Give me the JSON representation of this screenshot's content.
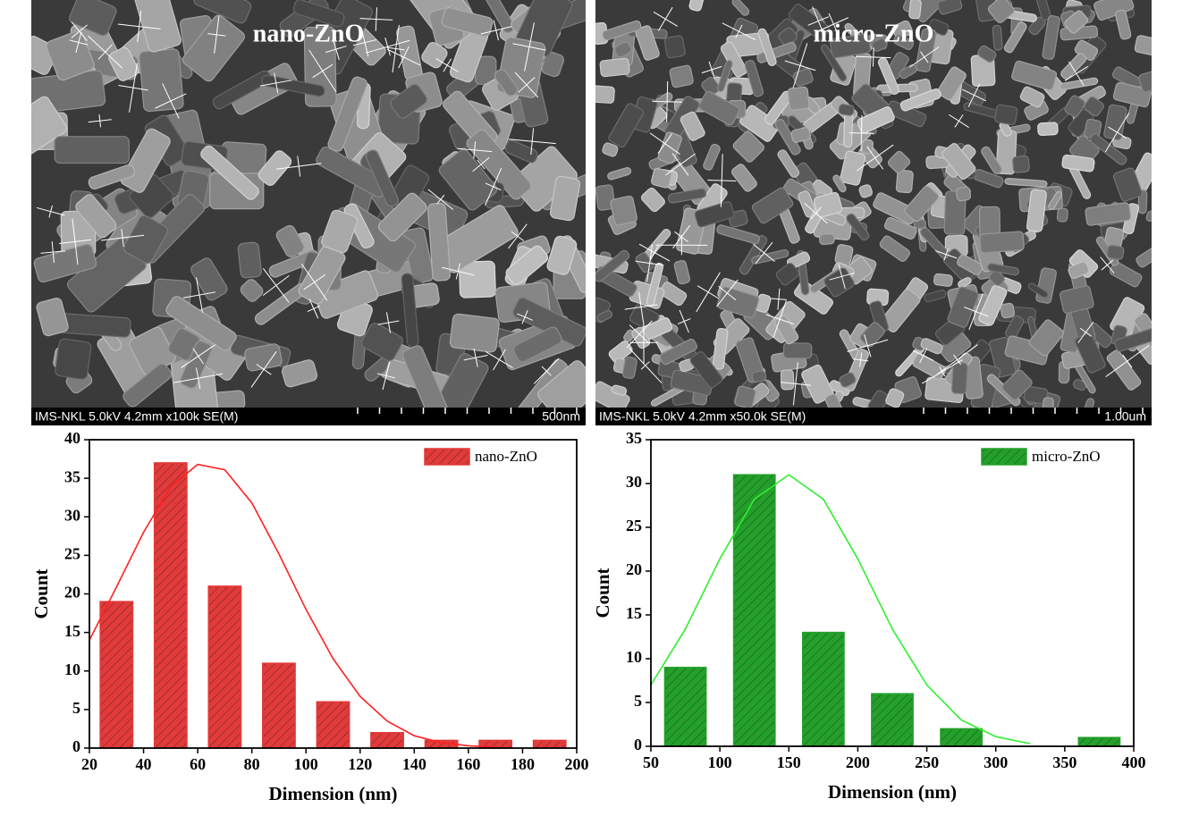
{
  "images": [
    {
      "label": "nano-ZnO",
      "info": "IMS-NKL 5.0kV 4.2mm x100k SE(M)",
      "scale": "500nm"
    },
    {
      "label": "micro-ZnO",
      "info": "IMS-NKL 5.0kV 4.2mm x50.0k SE(M)",
      "scale": "1.00um"
    }
  ],
  "chart_data": [
    {
      "type": "bar",
      "xlabel": "Dimension (nm)",
      "ylabel": "Count",
      "x": [
        30,
        50,
        70,
        90,
        110,
        130,
        150,
        170,
        190
      ],
      "series": [
        {
          "name": "nano-ZnO",
          "color": "#e23a3a",
          "values": [
            19,
            37,
            21,
            11,
            6,
            2,
            1,
            1,
            1
          ]
        }
      ],
      "fit": {
        "color": "#ff2020",
        "x": [
          20,
          30,
          40,
          50,
          60,
          70,
          80,
          90,
          100,
          110,
          120,
          130,
          140,
          150,
          160,
          170
        ],
        "values": [
          14.0,
          20.9,
          28.0,
          33.9,
          36.8,
          36.1,
          31.8,
          25.2,
          18.0,
          11.6,
          6.7,
          3.5,
          1.6,
          0.7,
          0.3,
          0.1
        ]
      },
      "xlim": [
        20,
        200
      ],
      "xticks": [
        20,
        40,
        60,
        80,
        100,
        120,
        140,
        160,
        180,
        200
      ],
      "ylim": [
        0,
        40
      ],
      "yticks": [
        0,
        5,
        10,
        15,
        20,
        25,
        30,
        35,
        40
      ],
      "legend": "upper right"
    },
    {
      "type": "bar",
      "xlabel": "Dimension (nm)",
      "ylabel": "Count",
      "x": [
        75,
        125,
        175,
        225,
        275,
        375
      ],
      "series": [
        {
          "name": "micro-ZnO",
          "color": "#23a02a",
          "values": [
            9,
            31,
            13,
            6,
            2,
            1
          ]
        }
      ],
      "fit": {
        "color": "#33ee33",
        "x": [
          50,
          75,
          100,
          125,
          150,
          175,
          200,
          225,
          250,
          275,
          300,
          325
        ],
        "values": [
          7.0,
          13.4,
          21.4,
          28.2,
          31,
          28.2,
          21.4,
          13.4,
          7.0,
          3.0,
          1.1,
          0.3
        ]
      },
      "xlim": [
        50,
        400
      ],
      "xticks": [
        50,
        100,
        150,
        200,
        250,
        300,
        350,
        400
      ],
      "ylim": [
        0,
        35
      ],
      "yticks": [
        0,
        5,
        10,
        15,
        20,
        25,
        30,
        35
      ],
      "legend": "upper right"
    }
  ]
}
